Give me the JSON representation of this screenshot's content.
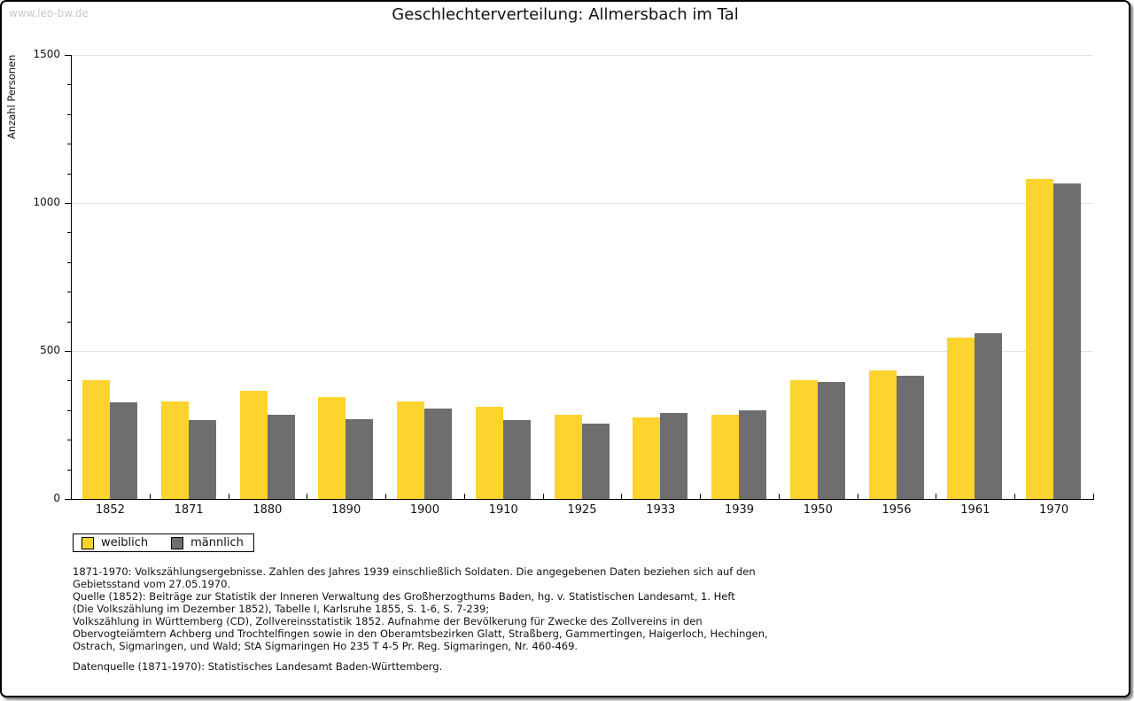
{
  "page": {
    "watermark": "www.leo-bw.de",
    "title": "Geschlechterverteilung: Allmersbach im Tal"
  },
  "chart_data": {
    "type": "bar",
    "title": "Geschlechterverteilung: Allmersbach im Tal",
    "xlabel": "",
    "ylabel": "Anzahl Personen",
    "ylim": [
      0,
      1500
    ],
    "yticks_major": [
      0,
      500,
      1000,
      1500
    ],
    "ytick_minor_step": 100,
    "grid_values": [
      500,
      1000,
      1500
    ],
    "grid": "horizontal",
    "legend_position": "bottom-left",
    "categories": [
      "1852",
      "1871",
      "1880",
      "1890",
      "1900",
      "1910",
      "1925",
      "1933",
      "1939",
      "1950",
      "1956",
      "1961",
      "1970"
    ],
    "series": [
      {
        "name": "weiblich",
        "color": "#FDD32D",
        "values": [
          400,
          330,
          365,
          345,
          330,
          310,
          285,
          275,
          285,
          400,
          435,
          545,
          1080
        ]
      },
      {
        "name": "männlich",
        "color": "#6E6E6E",
        "values": [
          325,
          265,
          285,
          270,
          305,
          265,
          255,
          290,
          300,
          395,
          415,
          560,
          1065
        ]
      }
    ],
    "colors": {
      "gridline": "#E2E2E2",
      "axis": "#000000",
      "watermark": "#C9C9C9"
    }
  },
  "footnotes": {
    "lines": [
      "1871-1970: Volkszählungsergebnisse. Zahlen des Jahres 1939 einschließlich Soldaten. Die angegebenen Daten beziehen sich auf den",
      "Gebietsstand vom 27.05.1970.",
      "Quelle (1852): Beiträge zur Statistik der Inneren Verwaltung des Großherzogthums Baden, hg. v. Statistischen Landesamt, 1. Heft",
      "(Die Volkszählung im Dezember 1852), Tabelle I, Karlsruhe 1855, S. 1-6, S. 7-239;",
      "Volkszählung in Württemberg (CD), Zollvereinsstatistik 1852. Aufnahme der Bevölkerung für Zwecke des Zollvereins in den",
      "Obervogteiämtern Achberg und Trochtelfingen sowie in den Oberamtsbezirken Glatt, Straßberg, Gammertingen, Haigerloch, Hechingen,",
      "Ostrach, Sigmaringen, und Wald; StA Sigmaringen Ho 235 T 4-5 Pr. Reg. Sigmaringen, Nr. 460-469."
    ],
    "datasource": "Datenquelle (1871-1970): Statistisches Landesamt Baden-Württemberg."
  }
}
